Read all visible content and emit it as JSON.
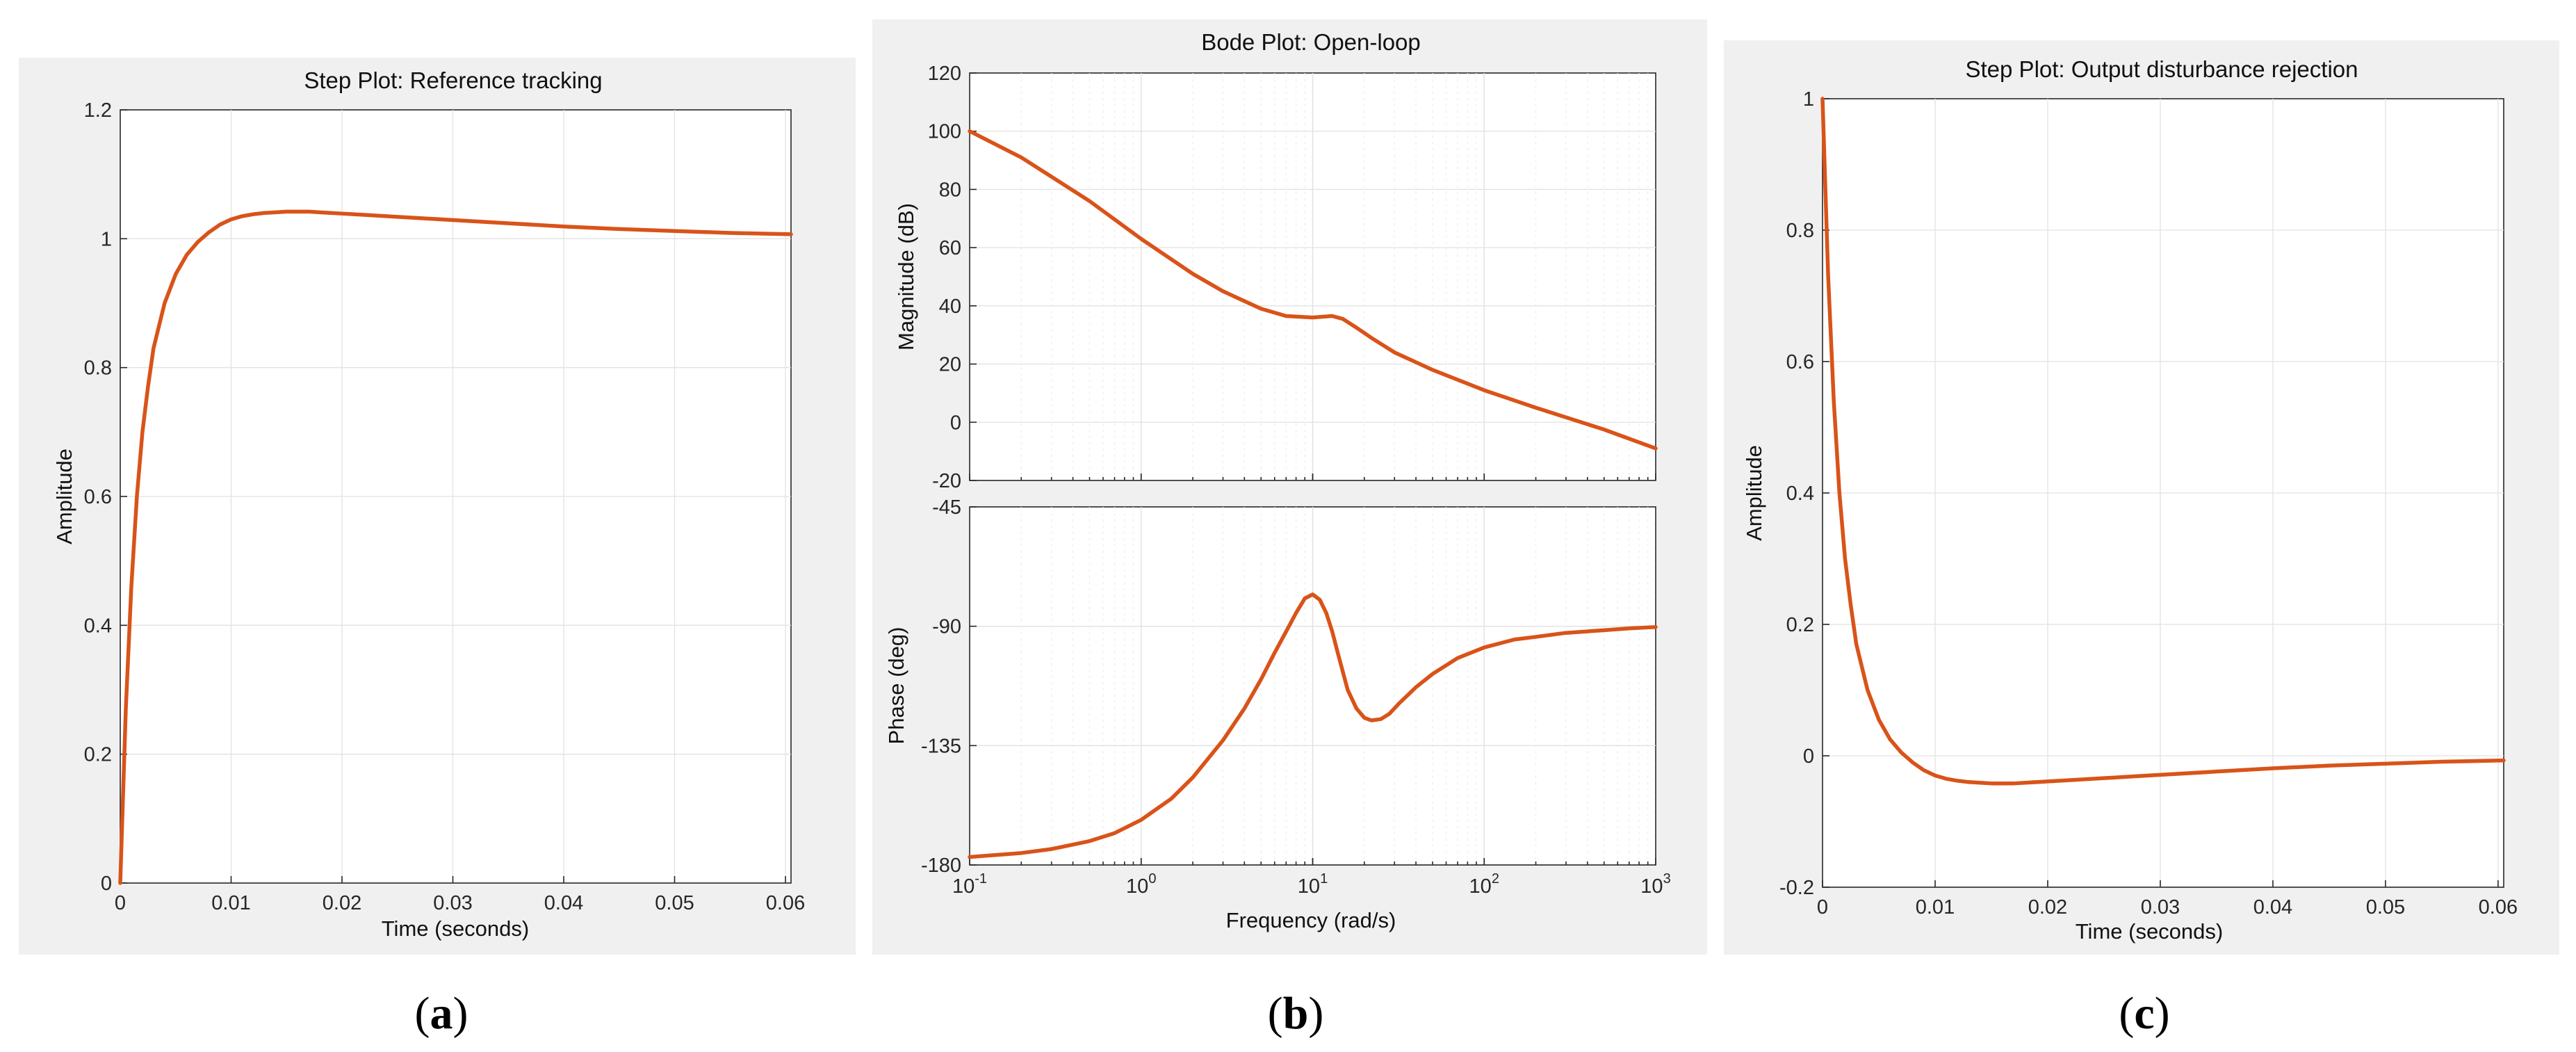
{
  "chart_data": [
    {
      "id": "a",
      "type": "line",
      "title": "Step Plot: Reference tracking",
      "xlabel": "Time (seconds)",
      "ylabel": "Amplitude",
      "xlim": [
        0,
        0.0605
      ],
      "ylim": [
        0,
        1.2
      ],
      "xticks": [
        0,
        0.01,
        0.02,
        0.03,
        0.04,
        0.05,
        0.06
      ],
      "xtick_labels": [
        "0",
        "0.01",
        "0.02",
        "0.03",
        "0.04",
        "0.05",
        "0.06"
      ],
      "yticks": [
        0,
        0.2,
        0.4,
        0.6,
        0.8,
        1,
        1.2
      ],
      "ytick_labels": [
        "0",
        "0.2",
        "0.4",
        "0.6",
        "0.8",
        "1",
        "1.2"
      ],
      "grid": true,
      "color": "#d95319",
      "x": [
        0,
        0.0005,
        0.001,
        0.0015,
        0.002,
        0.0025,
        0.003,
        0.004,
        0.005,
        0.006,
        0.007,
        0.008,
        0.009,
        0.01,
        0.011,
        0.012,
        0.013,
        0.014,
        0.015,
        0.016,
        0.017,
        0.018,
        0.02,
        0.022,
        0.025,
        0.028,
        0.03,
        0.035,
        0.04,
        0.045,
        0.05,
        0.055,
        0.0605
      ],
      "y": [
        0,
        0.27,
        0.46,
        0.6,
        0.7,
        0.77,
        0.83,
        0.9,
        0.945,
        0.975,
        0.995,
        1.01,
        1.022,
        1.03,
        1.035,
        1.038,
        1.04,
        1.041,
        1.042,
        1.042,
        1.042,
        1.041,
        1.039,
        1.037,
        1.034,
        1.031,
        1.029,
        1.024,
        1.019,
        1.015,
        1.012,
        1.009,
        1.007
      ]
    },
    {
      "id": "b",
      "type": "line",
      "title": "Bode Plot: Open-loop",
      "xlabel": "Frequency  (rad/s)",
      "xscale": "log",
      "xlim": [
        0.1,
        1000
      ],
      "xtick_labels": [
        {
          "base": "10",
          "exp": "-1"
        },
        {
          "base": "10",
          "exp": "0"
        },
        {
          "base": "10",
          "exp": "1"
        },
        {
          "base": "10",
          "exp": "2"
        },
        {
          "base": "10",
          "exp": "3"
        }
      ],
      "color": "#d95319",
      "magnitude": {
        "ylabel": "Magnitude (dB)",
        "ylim": [
          -20,
          120
        ],
        "yticks": [
          -20,
          0,
          20,
          40,
          60,
          80,
          100,
          120
        ],
        "ytick_labels": [
          "-20",
          "0",
          "20",
          "40",
          "60",
          "80",
          "100",
          "120"
        ],
        "x": [
          0.1,
          0.2,
          0.5,
          1,
          2,
          3,
          5,
          7,
          10,
          13,
          15,
          18,
          22,
          30,
          50,
          100,
          200,
          500,
          1000
        ],
        "y": [
          100,
          91,
          76,
          63,
          51,
          45,
          39,
          36.5,
          36,
          36.5,
          35.5,
          32.5,
          29,
          24,
          18,
          11,
          5,
          -2.5,
          -9
        ]
      },
      "phase": {
        "ylabel": "Phase (deg)",
        "ylim": [
          -180,
          -45
        ],
        "yticks": [
          -180,
          -135,
          -90,
          -45
        ],
        "ytick_labels": [
          "-180",
          "-135",
          "-90",
          "-45"
        ],
        "x": [
          0.1,
          0.2,
          0.3,
          0.5,
          0.7,
          1,
          1.5,
          2,
          3,
          4,
          5,
          6,
          7,
          8,
          9,
          10,
          11,
          12,
          13,
          14,
          16,
          18,
          20,
          22,
          25,
          28,
          32,
          40,
          50,
          70,
          100,
          150,
          200,
          300,
          500,
          700,
          1000
        ],
        "y": [
          -177,
          -175.5,
          -174,
          -171,
          -168,
          -163,
          -155,
          -147,
          -133,
          -121,
          -110,
          -100,
          -92,
          -85,
          -79.5,
          -78,
          -80,
          -85,
          -92,
          -100,
          -114,
          -121,
          -124.5,
          -125.5,
          -125,
          -123,
          -119,
          -113,
          -108,
          -102,
          -98,
          -95,
          -94,
          -92.5,
          -91.5,
          -90.8,
          -90.3
        ]
      }
    },
    {
      "id": "c",
      "type": "line",
      "title": "Step Plot: Output disturbance rejection",
      "xlabel": "Time (seconds)",
      "ylabel": "Amplitude",
      "xlim": [
        0,
        0.0605
      ],
      "ylim": [
        -0.2,
        1
      ],
      "xticks": [
        0,
        0.01,
        0.02,
        0.03,
        0.04,
        0.05,
        0.06
      ],
      "xtick_labels": [
        "0",
        "0.01",
        "0.02",
        "0.03",
        "0.04",
        "0.05",
        "0.06"
      ],
      "yticks": [
        -0.2,
        0,
        0.2,
        0.4,
        0.6,
        0.8,
        1
      ],
      "ytick_labels": [
        "-0.2",
        "0",
        "0.2",
        "0.4",
        "0.6",
        "0.8",
        "1"
      ],
      "grid": true,
      "color": "#d95319",
      "x": [
        0,
        0.0005,
        0.001,
        0.0015,
        0.002,
        0.0025,
        0.003,
        0.004,
        0.005,
        0.006,
        0.007,
        0.008,
        0.009,
        0.01,
        0.011,
        0.012,
        0.013,
        0.014,
        0.015,
        0.016,
        0.017,
        0.018,
        0.02,
        0.022,
        0.025,
        0.028,
        0.03,
        0.035,
        0.04,
        0.045,
        0.05,
        0.055,
        0.0605
      ],
      "y": [
        1,
        0.73,
        0.54,
        0.4,
        0.3,
        0.23,
        0.17,
        0.1,
        0.055,
        0.025,
        0.005,
        -0.01,
        -0.022,
        -0.03,
        -0.035,
        -0.038,
        -0.04,
        -0.041,
        -0.042,
        -0.042,
        -0.042,
        -0.041,
        -0.039,
        -0.037,
        -0.034,
        -0.031,
        -0.029,
        -0.024,
        -0.019,
        -0.015,
        -0.012,
        -0.009,
        -0.007
      ]
    }
  ],
  "captions": {
    "a": {
      "open": "(",
      "letter": "a",
      "close": ")"
    },
    "b": {
      "open": "(",
      "letter": "b",
      "close": ")"
    },
    "c": {
      "open": "(",
      "letter": "c",
      "close": ")"
    }
  }
}
